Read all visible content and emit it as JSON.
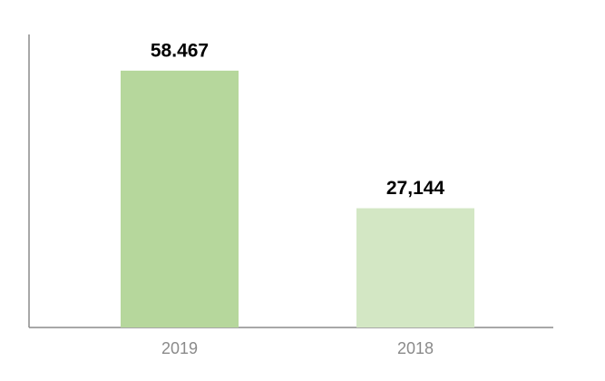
{
  "chart_data": {
    "type": "bar",
    "categories": [
      "2019",
      "2018"
    ],
    "values": [
      58467,
      27144
    ],
    "value_labels": [
      "58.467",
      "27,144"
    ],
    "colors": [
      "#b6d79c",
      "#d3e7c4"
    ],
    "ylim": [
      0,
      66700
    ]
  }
}
